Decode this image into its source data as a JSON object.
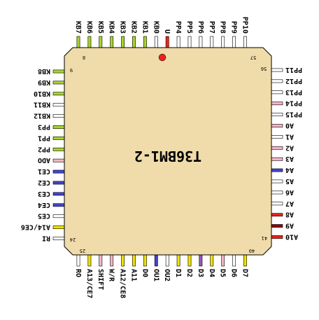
{
  "chip": {
    "name": "T36BM1-2",
    "body_color": "#f0dcaa",
    "pin1_marker_color": "#e8241c",
    "pin_numbers": {
      "top_left": "8",
      "top_right": "57",
      "left_top": "9",
      "left_bottom": "24",
      "bottom_left": "25",
      "bottom_right": "40",
      "right_top": "56",
      "right_bottom": "41"
    }
  },
  "colors": {
    "none": "#ffffff",
    "green": "#a8d42c",
    "red": "#e8241c",
    "pink": "#f4b4c4",
    "blue": "#4444cc",
    "yellow": "#f0e000",
    "purple": "#9955bb",
    "darkred": "#8b0011"
  },
  "pins": {
    "top": [
      {
        "label": "KB7",
        "color": "green"
      },
      {
        "label": "KB6",
        "color": "green"
      },
      {
        "label": "KB5",
        "color": "green"
      },
      {
        "label": "KB4",
        "color": "green"
      },
      {
        "label": "KB3",
        "color": "green"
      },
      {
        "label": "KB2",
        "color": "green"
      },
      {
        "label": "KB1",
        "color": "green"
      },
      {
        "label": "KB0",
        "color": "none"
      },
      {
        "label": "U",
        "color": "red"
      },
      {
        "label": "PP4",
        "color": "none"
      },
      {
        "label": "PP5",
        "color": "none"
      },
      {
        "label": "PP6",
        "color": "none"
      },
      {
        "label": "PP7",
        "color": "none"
      },
      {
        "label": "PP8",
        "color": "none"
      },
      {
        "label": "PP9",
        "color": "none"
      },
      {
        "label": "PP10",
        "color": "none"
      }
    ],
    "left": [
      {
        "label": "KB8",
        "color": "green"
      },
      {
        "label": "KB9",
        "color": "green"
      },
      {
        "label": "KB10",
        "color": "green"
      },
      {
        "label": "KB11",
        "color": "none"
      },
      {
        "label": "KB12",
        "color": "none"
      },
      {
        "label": "PP3",
        "color": "green"
      },
      {
        "label": "PP1",
        "color": "green"
      },
      {
        "label": "PP2",
        "color": "green"
      },
      {
        "label": "ADO",
        "color": "pink"
      },
      {
        "label": "CE1",
        "color": "blue"
      },
      {
        "label": "CE2",
        "color": "blue"
      },
      {
        "label": "CE3",
        "color": "blue"
      },
      {
        "label": "CE4",
        "color": "blue"
      },
      {
        "label": "CE5",
        "color": "none"
      },
      {
        "label": "A14/CE6",
        "color": "yellow"
      },
      {
        "label": "RI",
        "color": "none"
      }
    ],
    "bottom": [
      {
        "label": "RO",
        "color": "none"
      },
      {
        "label": "A13/CE7",
        "color": "yellow"
      },
      {
        "label": "SHIFT",
        "color": "pink"
      },
      {
        "label": "W/R",
        "color": "pink"
      },
      {
        "label": "A12/CE8",
        "color": "yellow"
      },
      {
        "label": "A11",
        "color": "yellow"
      },
      {
        "label": "D0",
        "color": "yellow"
      },
      {
        "label": "OU1",
        "color": "blue"
      },
      {
        "label": "OU2",
        "color": "none"
      },
      {
        "label": "D1",
        "color": "yellow"
      },
      {
        "label": "D2",
        "color": "yellow"
      },
      {
        "label": "D3",
        "color": "purple"
      },
      {
        "label": "D4",
        "color": "yellow"
      },
      {
        "label": "D5",
        "color": "pink"
      },
      {
        "label": "D6",
        "color": "none"
      },
      {
        "label": "D7",
        "color": "yellow"
      }
    ],
    "right": [
      {
        "label": "PP11",
        "color": "none"
      },
      {
        "label": "PP12",
        "color": "none"
      },
      {
        "label": "PP13",
        "color": "none"
      },
      {
        "label": "PP14",
        "color": "pink"
      },
      {
        "label": "PP15",
        "color": "none"
      },
      {
        "label": "A0",
        "color": "pink"
      },
      {
        "label": "A1",
        "color": "none"
      },
      {
        "label": "A2",
        "color": "pink"
      },
      {
        "label": "A3",
        "color": "pink"
      },
      {
        "label": "A4",
        "color": "blue"
      },
      {
        "label": "A5",
        "color": "none"
      },
      {
        "label": "A6",
        "color": "none"
      },
      {
        "label": "A7",
        "color": "none"
      },
      {
        "label": "A8",
        "color": "red"
      },
      {
        "label": "A9",
        "color": "darkred"
      },
      {
        "label": "A10",
        "color": "red"
      }
    ]
  }
}
